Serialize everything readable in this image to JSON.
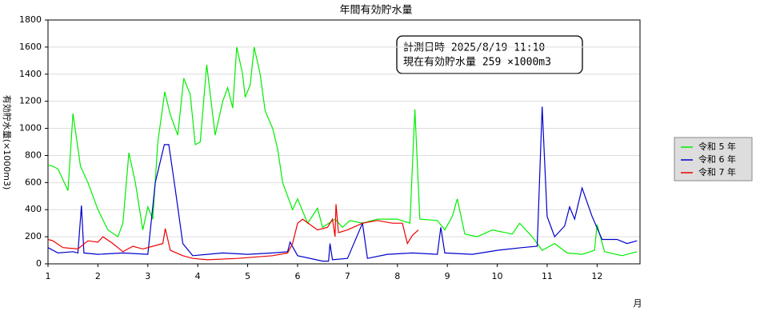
{
  "chart_data": {
    "type": "line",
    "title": "年間有効貯水量",
    "y_label": "有効貯水量(×1000m3)",
    "x_label": "月",
    "annotation": [
      "計測日時 2025/8/19 11:10",
      "現在有効貯水量 259 ×1000m3"
    ],
    "xlim": [
      1,
      12.86
    ],
    "xticks": [
      1,
      2,
      3,
      4,
      5,
      6,
      7,
      8,
      9,
      10,
      11,
      12
    ],
    "ylim": [
      0,
      1800
    ],
    "yticks": [
      0,
      200,
      400,
      600,
      800,
      1000,
      1200,
      1400,
      1600,
      1800
    ],
    "grid": true,
    "legend": "right",
    "series": [
      {
        "name": "令和 5 年",
        "color": "#00ee00",
        "x": [
          1,
          1.1,
          1.2,
          1.4,
          1.5,
          1.65,
          1.8,
          2.0,
          2.2,
          2.4,
          2.5,
          2.62,
          2.75,
          2.9,
          3.0,
          3.1,
          3.2,
          3.34,
          3.45,
          3.6,
          3.72,
          3.85,
          3.95,
          4.05,
          4.18,
          4.3,
          4.35,
          4.5,
          4.6,
          4.7,
          4.78,
          4.9,
          4.95,
          5.05,
          5.13,
          5.25,
          5.35,
          5.5,
          5.6,
          5.7,
          5.9,
          6.0,
          6.2,
          6.4,
          6.5,
          6.75,
          6.9,
          7.05,
          7.3,
          7.6,
          8.0,
          8.25,
          8.35,
          8.45,
          8.8,
          8.95,
          9.1,
          9.2,
          9.35,
          9.6,
          9.9,
          10.3,
          10.45,
          10.7,
          10.9,
          11.15,
          11.4,
          11.7,
          11.95,
          12.0,
          12.15,
          12.5,
          12.8
        ],
        "values": [
          730,
          720,
          700,
          540,
          1110,
          720,
          600,
          400,
          250,
          200,
          300,
          820,
          600,
          250,
          420,
          330,
          900,
          1270,
          1100,
          950,
          1370,
          1250,
          880,
          900,
          1470,
          1100,
          950,
          1200,
          1300,
          1150,
          1600,
          1400,
          1230,
          1320,
          1600,
          1400,
          1130,
          1000,
          850,
          600,
          400,
          480,
          300,
          410,
          270,
          330,
          270,
          320,
          300,
          330,
          330,
          300,
          1140,
          330,
          320,
          250,
          350,
          480,
          220,
          200,
          250,
          220,
          300,
          200,
          100,
          150,
          80,
          70,
          100,
          290,
          90,
          60,
          90
        ]
      },
      {
        "name": "令和 6 年",
        "color": "#0000cc",
        "x": [
          1,
          1.2,
          1.5,
          1.6,
          1.67,
          1.72,
          2.0,
          2.5,
          3.0,
          3.15,
          3.33,
          3.42,
          3.55,
          3.7,
          3.9,
          4.5,
          5.0,
          5.5,
          5.8,
          5.85,
          6.0,
          6.5,
          6.62,
          6.65,
          6.7,
          7.0,
          7.3,
          7.4,
          7.8,
          8.3,
          8.8,
          8.87,
          8.95,
          9.5,
          10.0,
          10.5,
          10.8,
          10.9,
          11.0,
          11.15,
          11.35,
          11.45,
          11.55,
          11.7,
          11.9,
          12.1,
          12.4,
          12.6,
          12.8
        ],
        "values": [
          120,
          80,
          90,
          80,
          430,
          80,
          70,
          80,
          70,
          600,
          880,
          880,
          550,
          150,
          60,
          80,
          70,
          80,
          90,
          160,
          60,
          20,
          20,
          150,
          30,
          40,
          300,
          40,
          70,
          80,
          70,
          270,
          80,
          70,
          100,
          120,
          130,
          1160,
          350,
          200,
          280,
          420,
          330,
          560,
          350,
          180,
          180,
          150,
          170
        ]
      },
      {
        "name": "令和 7 年",
        "color": "#ee0000",
        "x": [
          1,
          1.1,
          1.3,
          1.6,
          1.8,
          2.0,
          2.1,
          2.3,
          2.5,
          2.7,
          2.9,
          3.1,
          3.3,
          3.35,
          3.45,
          3.7,
          3.9,
          4.2,
          4.8,
          5.5,
          5.8,
          5.9,
          6.0,
          6.1,
          6.4,
          6.6,
          6.7,
          6.75,
          6.77,
          6.82,
          7.0,
          7.3,
          7.6,
          7.9,
          8.1,
          8.2,
          8.3,
          8.42
        ],
        "values": [
          180,
          170,
          120,
          110,
          170,
          160,
          200,
          150,
          90,
          130,
          110,
          130,
          150,
          260,
          100,
          60,
          40,
          30,
          40,
          60,
          80,
          150,
          300,
          330,
          250,
          270,
          330,
          200,
          440,
          230,
          250,
          300,
          320,
          300,
          300,
          150,
          210,
          250
        ]
      }
    ]
  }
}
